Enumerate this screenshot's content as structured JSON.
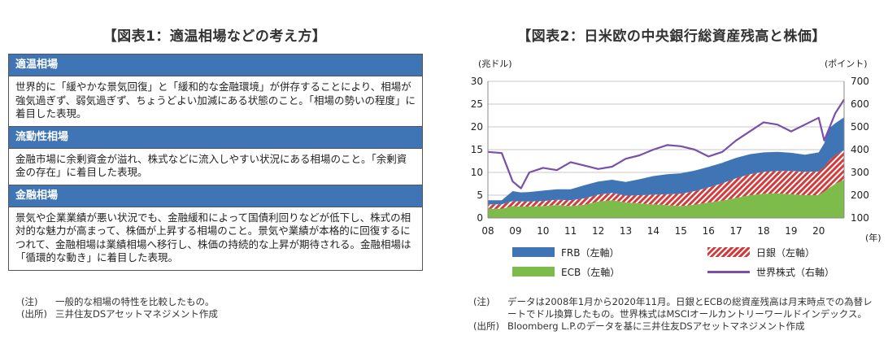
{
  "left": {
    "title": "【図表1：適温相場などの考え方】",
    "sections": [
      {
        "heading": "適温相場",
        "body": "世界的に「緩やかな景気回復」と「緩和的な金融環境」が併存することにより、相場が強気過ぎず、弱気過ぎず、ちょうどよい加減にある状態のこと。「相場の勢いの程度」に着目した表現。"
      },
      {
        "heading": "流動性相場",
        "body": "金融市場に余剰資金が溢れ、株式などに流入しやすい状況にある相場のこと。「余剰資金の存在」に着目した表現。"
      },
      {
        "heading": "金融相場",
        "body": "景気や企業業績が悪い状況でも、金融緩和によって国債利回りなどが低下し、株式の相対的な魅力が高まって、株価が上昇する相場のこと。景気や業績が本格的に回復するにつれて、金融相場は業績相場へ移行し、株価の持続的な上昇が期待される。金融相場は「循環的な動き」に着目した表現。"
      }
    ],
    "notes": [
      {
        "k": "(注)",
        "v": "一般的な相場の特性を比較したもの。"
      },
      {
        "k": "(出所)",
        "v": "三井住友DSアセットマネジメント作成"
      }
    ]
  },
  "right": {
    "title": "【図表2：日米欧の中央銀行総資産残高と株価】",
    "notes": [
      {
        "k": "(注)",
        "v": "データは2008年1月から2020年11月。日銀とECBの総資産残高は月末時点での為替レートでドル換算したもの。世界株式はMSCIオールカントリーワールドインデックス。"
      },
      {
        "k": "(出所)",
        "v": "Bloomberg L.P.のデータを基に三井住友DSアセットマネジメント作成"
      }
    ]
  },
  "chart_data": {
    "type": "area",
    "title": "【図表2：日米欧の中央銀行総資産残高と株価】",
    "ylabel_left": "(兆ドル)",
    "ylabel_right": "(ポイント)",
    "xlabel_unit": "(年)",
    "ylim_left": [
      0,
      30
    ],
    "ylim_right": [
      100,
      700
    ],
    "yticks_left": [
      "0",
      "5",
      "10",
      "15",
      "20",
      "25",
      "30"
    ],
    "yticks_right": [
      "100",
      "200",
      "300",
      "400",
      "500",
      "600",
      "700"
    ],
    "xticks": [
      "08",
      "09",
      "10",
      "11",
      "12",
      "13",
      "14",
      "15",
      "16",
      "17",
      "18",
      "19",
      "20"
    ],
    "xrange": [
      2008.0,
      2020.92
    ],
    "grid": true,
    "stack_order_bottom_to_top": [
      "ECB",
      "BOJ",
      "FRB"
    ],
    "colors": {
      "FRB": "#3f74b5",
      "BOJ": "#d23c3c",
      "ECB": "#7dbb4a",
      "STOCK": "#7b4fa8"
    },
    "legend": [
      {
        "key": "FRB",
        "label": "FRB（左軸）"
      },
      {
        "key": "BOJ",
        "label": "日銀（左軸）"
      },
      {
        "key": "ECB",
        "label": "ECB（左軸）"
      },
      {
        "key": "STOCK",
        "label": "世界株式（右軸）"
      }
    ],
    "x": [
      2008.0,
      2008.5,
      2008.9,
      2009.2,
      2009.5,
      2010.0,
      2010.5,
      2011.0,
      2011.5,
      2012.0,
      2012.5,
      2013.0,
      2013.5,
      2014.0,
      2014.5,
      2015.0,
      2015.5,
      2016.0,
      2016.5,
      2017.0,
      2017.5,
      2018.0,
      2018.5,
      2019.0,
      2019.5,
      2020.0,
      2020.2,
      2020.4,
      2020.6,
      2020.92
    ],
    "series": [
      {
        "name": "ECB（左軸）",
        "key": "ECB",
        "values": [
          2.0,
          2.0,
          2.6,
          2.5,
          2.5,
          2.6,
          2.8,
          2.6,
          2.9,
          3.6,
          3.9,
          3.4,
          3.2,
          3.0,
          2.8,
          2.6,
          2.9,
          3.4,
          3.8,
          4.4,
          5.0,
          5.3,
          5.4,
          5.2,
          5.0,
          5.0,
          5.8,
          6.7,
          7.5,
          8.4
        ]
      },
      {
        "name": "日銀（左軸）",
        "key": "BOJ",
        "values": [
          1.0,
          1.0,
          1.1,
          1.1,
          1.1,
          1.1,
          1.2,
          1.3,
          1.4,
          1.5,
          1.6,
          1.5,
          1.8,
          2.1,
          2.4,
          2.7,
          3.0,
          3.3,
          3.8,
          4.3,
          4.6,
          4.8,
          4.9,
          5.1,
          5.1,
          5.2,
          5.4,
          6.0,
          6.3,
          6.5
        ]
      },
      {
        "name": "FRB（左軸）",
        "key": "FRB",
        "values": [
          0.9,
          0.9,
          2.2,
          2.0,
          2.1,
          2.3,
          2.3,
          2.4,
          2.9,
          2.9,
          2.9,
          3.0,
          3.5,
          4.1,
          4.4,
          4.5,
          4.5,
          4.5,
          4.5,
          4.5,
          4.4,
          4.3,
          4.2,
          4.0,
          3.8,
          4.2,
          5.2,
          7.1,
          7.0,
          7.2
        ]
      },
      {
        "name": "世界株式（右軸）",
        "key": "STOCK",
        "axis": "right",
        "values": [
          390,
          385,
          260,
          230,
          300,
          320,
          310,
          345,
          330,
          315,
          325,
          360,
          375,
          400,
          420,
          415,
          400,
          370,
          390,
          440,
          480,
          520,
          510,
          480,
          510,
          540,
          440,
          500,
          560,
          620
        ]
      }
    ]
  }
}
